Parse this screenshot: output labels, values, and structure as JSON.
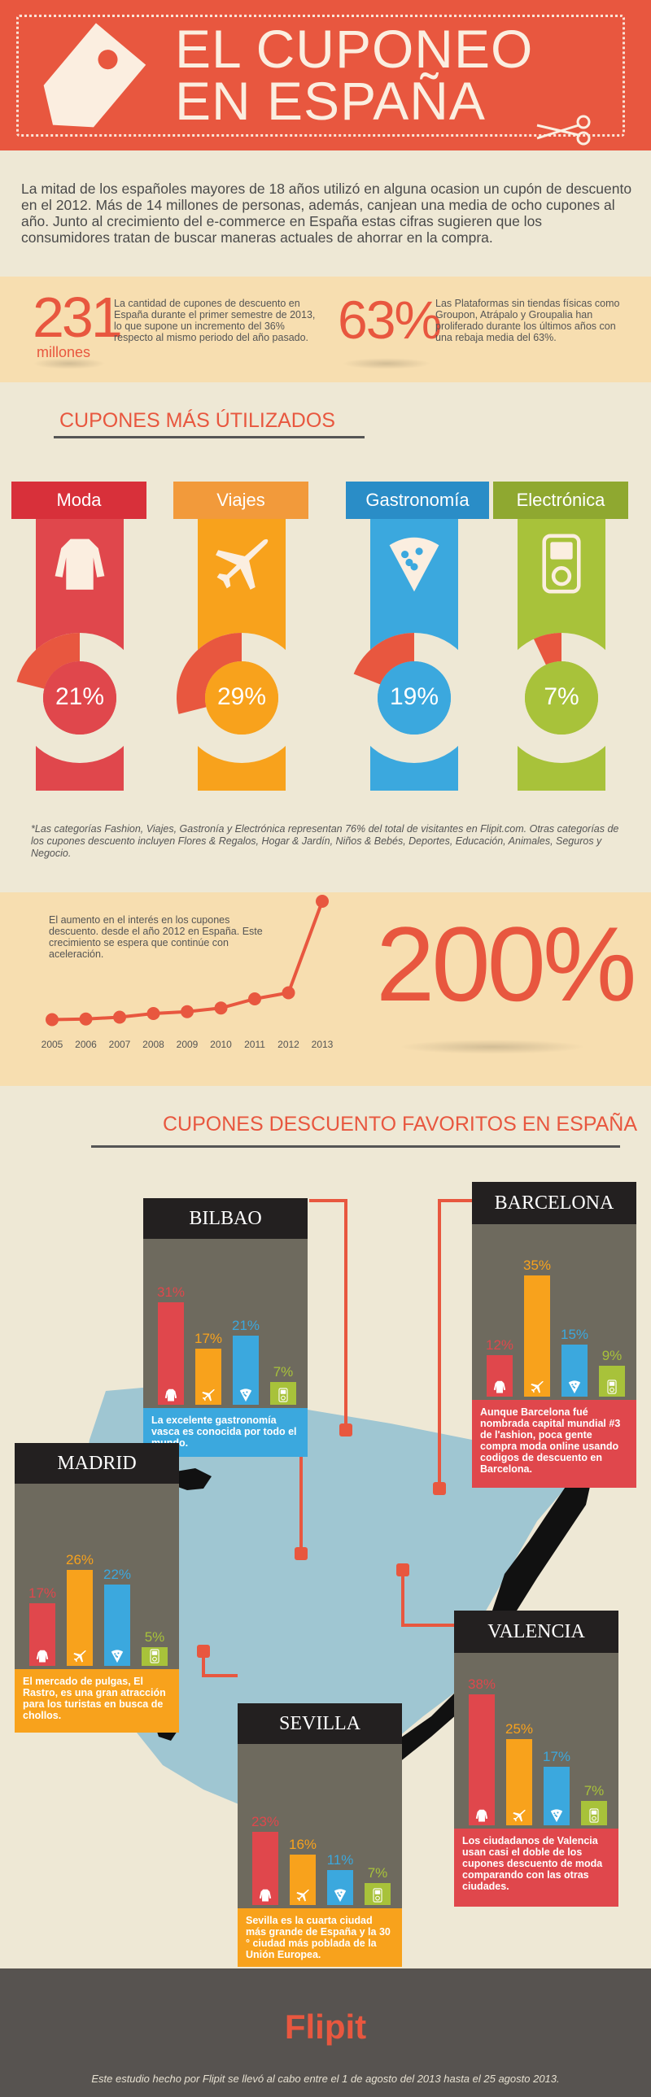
{
  "header": {
    "title_line1": "EL CUPONEO",
    "title_line2": "EN ESPAÑA",
    "tag_icon": "price-tag-icon",
    "scissors_icon": "scissors-icon"
  },
  "intro": "La mitad de los españoles mayores de 18 años utilizó en alguna ocasion un cupón de descuento en el 2012. Más de 14 millones de personas, además, canjean una media de ocho cupones al año. Junto al crecimiento del e-commerce en España estas cifras sugieren que los consumidores tratan de buscar maneras actuales de ahorrar en la compra.",
  "stats": [
    {
      "value": "231",
      "unit": "millones",
      "text": "La cantidad de cupones de descuento en España durante el primer semestre de 2013, lo que supone un incremento del 36% respecto al mismo periodo del año pasado."
    },
    {
      "value": "63%",
      "text": "Las Plataformas sin tiendas físicas como Groupon, Atrápalo y Groupalia han proliferado durante los últimos años con una rebaja media del 63%."
    }
  ],
  "categories_title": "CUPONES MÁS ÚTILIZADOS",
  "categories": [
    {
      "name": "Moda",
      "pct": "21%",
      "value": 21,
      "color": "#e0474c",
      "tab": "#d8303a",
      "icon": "coat-icon"
    },
    {
      "name": "Viajes",
      "pct": "29%",
      "value": 29,
      "color": "#f8a21c",
      "tab": "#f29a3b",
      "icon": "airplane-icon"
    },
    {
      "name": "Gastronomía",
      "pct": "19%",
      "value": 19,
      "color": "#3ba8de",
      "tab": "#2a8dc7",
      "icon": "pizza-slice-icon"
    },
    {
      "name": "Electrónica",
      "pct": "7%",
      "value": 7,
      "color": "#a8c23a",
      "tab": "#8fa830",
      "icon": "music-player-icon"
    }
  ],
  "categories_note": "*Las categorías Fashion, Viajes, Gastronía y Electrónica representan 76% del total de visitantes en Flipit.com. Otras categorías de los cupones descuento incluyen Flores & Regalos, Hogar & Jardín, Niños & Bebés, Deportes, Educación, Animales, Seguros y Negocio.",
  "growth": {
    "text": "El aumento en el interés en los cupones descuento. desde el año 2012 en España. Este crecimiento se espera que continúe con aceleración.",
    "value": "200%",
    "chart_data": {
      "type": "line",
      "x": [
        "2005",
        "2006",
        "2007",
        "2008",
        "2009",
        "2010",
        "2011",
        "2012",
        "2013"
      ],
      "y": [
        6,
        7,
        10,
        16,
        19,
        25,
        40,
        50,
        200
      ],
      "color": "#e8573f"
    }
  },
  "favorites_title": "CUPONES DESCUENTO FAVORITOS EN ESPAÑA",
  "cities": [
    {
      "name": "BILBAO",
      "values": [
        {
          "pct": "31%",
          "v": 31
        },
        {
          "pct": "17%",
          "v": 17
        },
        {
          "pct": "21%",
          "v": 21
        },
        {
          "pct": "7%",
          "v": 7
        }
      ],
      "note": "La excelente gastronomía vasca es conocida por todo el mundo.",
      "note_color": "#3ba8de"
    },
    {
      "name": "BARCELONA",
      "values": [
        {
          "pct": "12%",
          "v": 12
        },
        {
          "pct": "35%",
          "v": 35
        },
        {
          "pct": "15%",
          "v": 15
        },
        {
          "pct": "9%",
          "v": 9
        }
      ],
      "note": "Aunque Barcelona fué nombrada capital mundial #3 de l'ashion, poca gente compra moda online usando codigos de descuento en Barcelona.",
      "note_color": "#e0474c"
    },
    {
      "name": "MADRID",
      "values": [
        {
          "pct": "17%",
          "v": 17
        },
        {
          "pct": "26%",
          "v": 26
        },
        {
          "pct": "22%",
          "v": 22
        },
        {
          "pct": "5%",
          "v": 5
        }
      ],
      "note": "El mercado de pulgas, El Rastro, es una gran atracción para los turistas en busca de chollos.",
      "note_color": "#f8a21c"
    },
    {
      "name": "VALENCIA",
      "values": [
        {
          "pct": "38%",
          "v": 38
        },
        {
          "pct": "25%",
          "v": 25
        },
        {
          "pct": "17%",
          "v": 17
        },
        {
          "pct": "7%",
          "v": 7
        }
      ],
      "note": "Los ciudadanos de Valencia usan casi el doble de los cupones descuento de moda comparando con las otras ciudades.",
      "note_color": "#e0474c"
    },
    {
      "name": "SEVILLA",
      "values": [
        {
          "pct": "23%",
          "v": 23
        },
        {
          "pct": "16%",
          "v": 16
        },
        {
          "pct": "11%",
          "v": 11
        },
        {
          "pct": "7%",
          "v": 7
        }
      ],
      "note": "Sevilla es la cuarta ciudad más grande de España y la 30 ° ciudad más poblada de la Unión Europea.",
      "note_color": "#f8a21c"
    }
  ],
  "footer": {
    "brand": "Flipit",
    "note": "Este estudio hecho por Flipit se llevó al cabo entre el 1 de agosto del 2013 hasta el 25 agosto 2013."
  }
}
